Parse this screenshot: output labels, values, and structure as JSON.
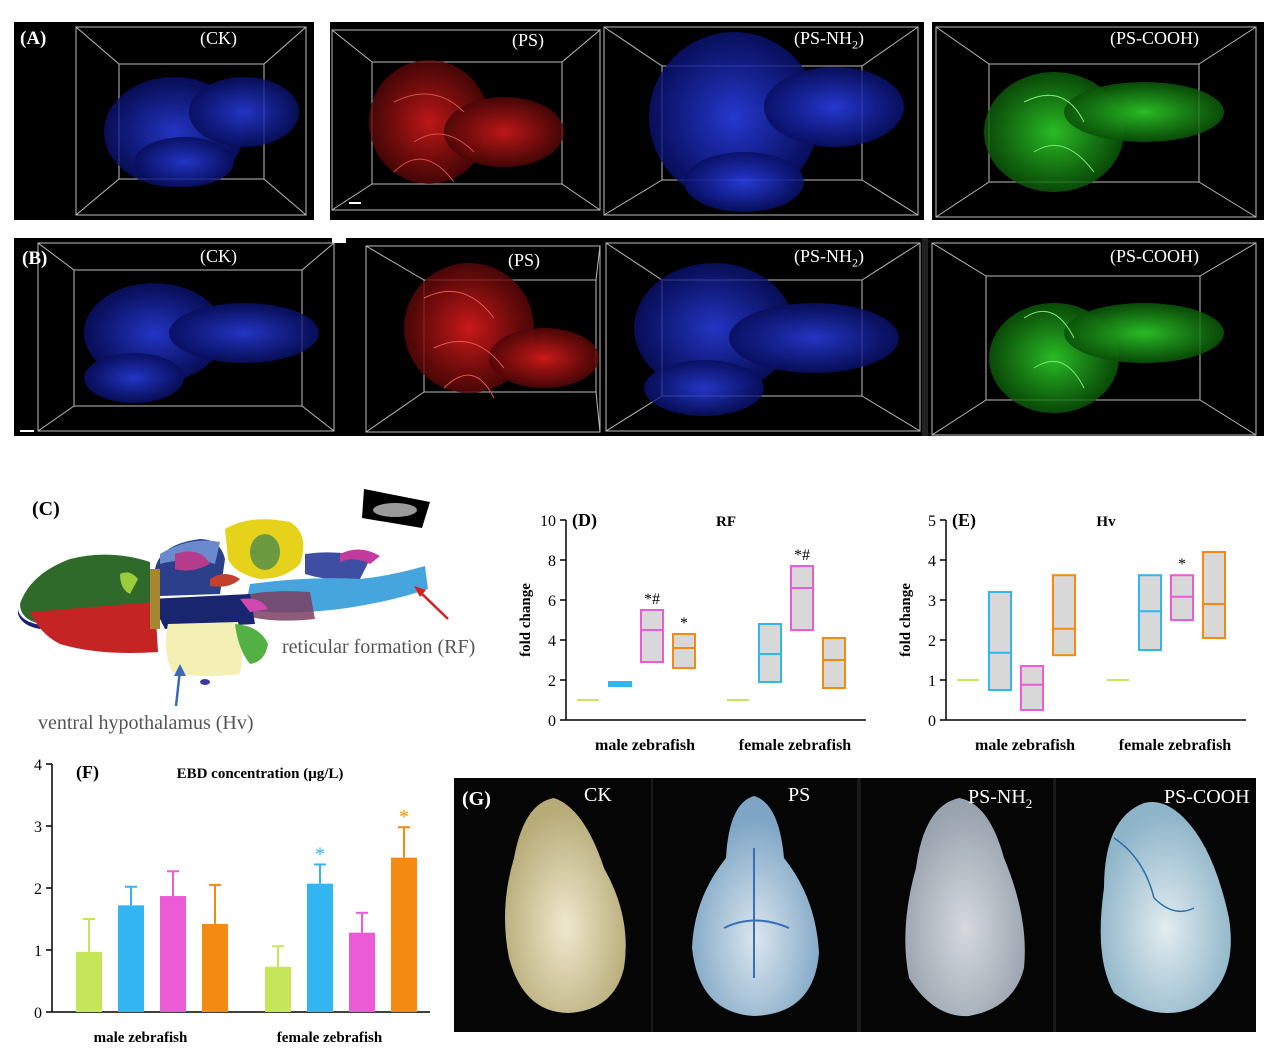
{
  "panel_a": {
    "label": "(A)",
    "tiles": [
      {
        "title": "(CK)",
        "color": "#1a2fd0"
      },
      {
        "title": "(PS)",
        "color": "#c81414"
      },
      {
        "title": "(PS-NH2)",
        "title_main": "(PS-NH",
        "title_sub": "2",
        "title_end": ")",
        "color": "#1a2fd0"
      },
      {
        "title": "(PS-COOH)",
        "color": "#22b81f"
      }
    ]
  },
  "panel_b": {
    "label": "(B)",
    "tiles": [
      {
        "title": "(CK)",
        "color": "#1a2fd0"
      },
      {
        "title": "(PS)",
        "color": "#d41414"
      },
      {
        "title": "(PS-NH2)",
        "title_main": "(PS-NH",
        "title_sub": "2",
        "title_end": ")",
        "color": "#1a2fd0"
      },
      {
        "title": "(PS-COOH)",
        "color": "#22b81f"
      }
    ]
  },
  "panel_c": {
    "label": "(C)",
    "rf_label": "reticular formation (RF)",
    "hv_label": "ventral hypothalamus (Hv)"
  },
  "colors": {
    "ck": "#c6e65a",
    "ps": "#33b5f2",
    "psnh2": "#ec5bd6",
    "pscooh": "#f58a12",
    "box_fill": "#d8d8d8"
  },
  "chart_data": [
    {
      "id": "D",
      "type": "box",
      "label": "(D)",
      "title": "RF",
      "ylabel": "fold change",
      "ylim": [
        0,
        10
      ],
      "yticks": [
        0,
        2,
        4,
        6,
        8,
        10
      ],
      "groups": [
        "male zebrafish",
        "female zebrafish"
      ],
      "series": [
        {
          "group": 0,
          "color": "ck",
          "min": 1,
          "median": 1,
          "max": 1,
          "annotation": ""
        },
        {
          "group": 0,
          "color": "ps",
          "min": 1.7,
          "median": 1.8,
          "max": 1.9,
          "annotation": ""
        },
        {
          "group": 0,
          "color": "psnh2",
          "min": 2.9,
          "median": 4.5,
          "max": 5.5,
          "annotation": "*#"
        },
        {
          "group": 0,
          "color": "pscooh",
          "min": 2.6,
          "median": 3.6,
          "max": 4.3,
          "annotation": "*"
        },
        {
          "group": 1,
          "color": "ck",
          "min": 1,
          "median": 1,
          "max": 1,
          "annotation": ""
        },
        {
          "group": 1,
          "color": "ps",
          "min": 1.9,
          "median": 3.3,
          "max": 4.8,
          "annotation": ""
        },
        {
          "group": 1,
          "color": "psnh2",
          "min": 4.5,
          "median": 6.6,
          "max": 7.7,
          "annotation": "*#"
        },
        {
          "group": 1,
          "color": "pscooh",
          "min": 1.6,
          "median": 3.0,
          "max": 4.1,
          "annotation": ""
        }
      ]
    },
    {
      "id": "E",
      "type": "box",
      "label": "(E)",
      "title": "Hv",
      "ylabel": "fold change",
      "ylim": [
        0,
        5
      ],
      "yticks": [
        0,
        1,
        2,
        3,
        4,
        5
      ],
      "groups": [
        "male zebrafish",
        "female zebrafish"
      ],
      "series": [
        {
          "group": 0,
          "color": "ck",
          "min": 1,
          "median": 1,
          "max": 1,
          "annotation": ""
        },
        {
          "group": 0,
          "color": "ps",
          "min": 0.75,
          "median": 1.68,
          "max": 3.2,
          "annotation": ""
        },
        {
          "group": 0,
          "color": "psnh2",
          "min": 0.25,
          "median": 0.88,
          "max": 1.35,
          "annotation": ""
        },
        {
          "group": 0,
          "color": "pscooh",
          "min": 1.62,
          "median": 2.28,
          "max": 3.62,
          "annotation": ""
        },
        {
          "group": 1,
          "color": "ck",
          "min": 1,
          "median": 1,
          "max": 1,
          "annotation": ""
        },
        {
          "group": 1,
          "color": "ps",
          "min": 1.75,
          "median": 2.72,
          "max": 3.62,
          "annotation": ""
        },
        {
          "group": 1,
          "color": "psnh2",
          "min": 2.5,
          "median": 3.08,
          "max": 3.62,
          "annotation": "*"
        },
        {
          "group": 1,
          "color": "pscooh",
          "min": 2.05,
          "median": 2.9,
          "max": 4.2,
          "annotation": ""
        }
      ]
    },
    {
      "id": "F",
      "type": "bar",
      "label": "(F)",
      "title": "EBD concentration (μg/L)",
      "ylim": [
        0,
        4
      ],
      "yticks": [
        0,
        1,
        2,
        3,
        4
      ],
      "groups": [
        "male zebrafish",
        "female zebrafish"
      ],
      "series": [
        {
          "group": 0,
          "color": "ck",
          "value": 0.97,
          "error": 0.53,
          "annotation": ""
        },
        {
          "group": 0,
          "color": "ps",
          "value": 1.72,
          "error": 0.3,
          "annotation": ""
        },
        {
          "group": 0,
          "color": "psnh2",
          "value": 1.87,
          "error": 0.4,
          "annotation": ""
        },
        {
          "group": 0,
          "color": "pscooh",
          "value": 1.42,
          "error": 0.63,
          "annotation": ""
        },
        {
          "group": 1,
          "color": "ck",
          "value": 0.73,
          "error": 0.33,
          "annotation": ""
        },
        {
          "group": 1,
          "color": "ps",
          "value": 2.07,
          "error": 0.31,
          "annotation": "*"
        },
        {
          "group": 1,
          "color": "psnh2",
          "value": 1.28,
          "error": 0.32,
          "annotation": ""
        },
        {
          "group": 1,
          "color": "pscooh",
          "value": 2.49,
          "error": 0.49,
          "annotation": "*"
        }
      ]
    }
  ],
  "panel_g": {
    "label": "(G)",
    "tiles": [
      {
        "title": "CK",
        "tint": "#d8d0a8"
      },
      {
        "title": "PS",
        "tint": "#b8cfe0"
      },
      {
        "title": "PS-NH2",
        "title_main": "PS-NH",
        "title_sub": "2",
        "title_end": "",
        "tint": "#c4ccd8"
      },
      {
        "title": "PS-COOH",
        "tint": "#c8dbe6"
      }
    ]
  }
}
